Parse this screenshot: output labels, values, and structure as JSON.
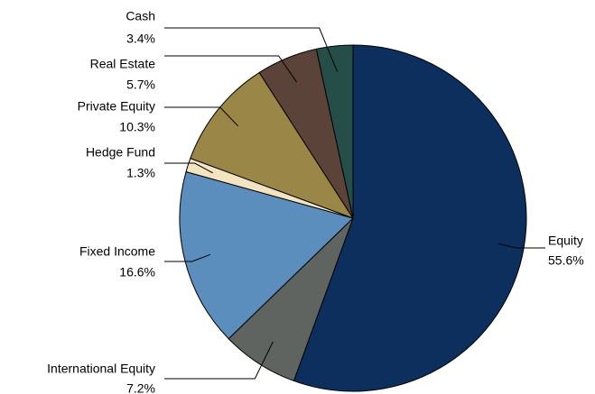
{
  "chart_data": {
    "type": "pie",
    "categories": [
      "Equity",
      "International Equity",
      "Fixed Income",
      "Hedge Fund",
      "Private Equity",
      "Real Estate",
      "Cash"
    ],
    "values": [
      55.6,
      7.2,
      16.6,
      1.3,
      10.3,
      5.7,
      3.4
    ],
    "value_labels": [
      "55.6%",
      "7.2%",
      "16.6%",
      "1.3%",
      "10.3%",
      "5.7%",
      "3.4%"
    ],
    "colors": [
      "#0d2f5e",
      "#5f6460",
      "#5b8dbd",
      "#f4e3c1",
      "#9a8646",
      "#5c4339",
      "#264e49"
    ]
  }
}
